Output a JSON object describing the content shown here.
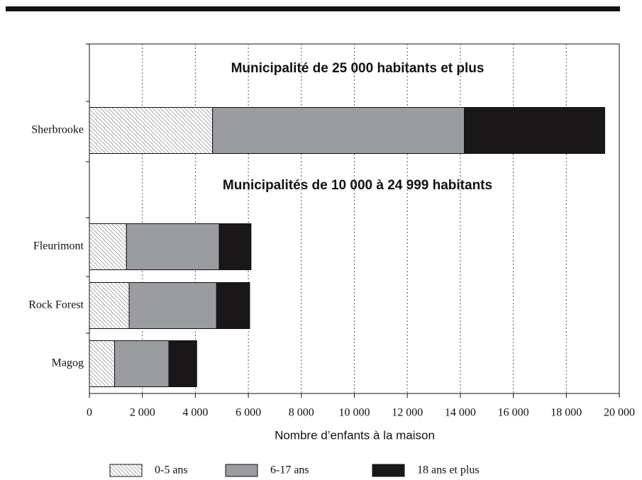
{
  "chart_data": {
    "type": "stacked-barh",
    "categories": [
      "Sherbrooke",
      "Fleurimont",
      "Rock Forest",
      "Magog"
    ],
    "annotations": [
      "Municipalité de 25 000 habitants et plus",
      "Municipalités de 10 000 à 24 999 habitants"
    ],
    "xlabel": "Nombre d’enfants à la maison",
    "series": [
      {
        "name": "0-5 ans",
        "color": "#ffffff",
        "pattern": "hatch",
        "values": [
          4650,
          1400,
          1500,
          950
        ]
      },
      {
        "name": "6-17 ans",
        "color": "#9a9c9f",
        "values": [
          9500,
          3500,
          3300,
          2050
        ]
      },
      {
        "name": "18 ans et plus",
        "color": "#1a1718",
        "values": [
          5300,
          1200,
          1250,
          1050
        ]
      }
    ],
    "xlim": [
      0,
      20000
    ],
    "xticks": [
      0,
      {
        "value": 2000,
        "label": "2 000"
      },
      {
        "value": 4000,
        "label": "4 000"
      },
      {
        "value": 6000,
        "label": "6 000"
      },
      {
        "value": 8000,
        "label": "8 000"
      },
      {
        "value": 10000,
        "label": "10 000"
      },
      {
        "value": 12000,
        "label": "12 000"
      },
      {
        "value": 14000,
        "label": "14 000"
      },
      {
        "value": 16000,
        "label": "16 000"
      },
      {
        "value": 18000,
        "label": "18 000"
      },
      {
        "value": 20000,
        "label": "20 000"
      }
    ],
    "grid": true
  }
}
